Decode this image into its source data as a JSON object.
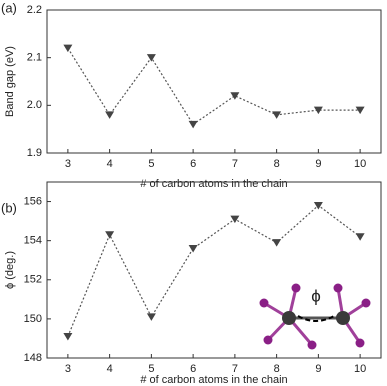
{
  "chart_data": [
    {
      "type": "line",
      "panel_label": "(a)",
      "xlabel": "# of carbon atoms in the chain",
      "ylabel": "Band gap (eV)",
      "x": [
        3,
        4,
        5,
        6,
        7,
        8,
        9,
        10
      ],
      "values": [
        2.12,
        1.98,
        2.1,
        1.96,
        2.02,
        1.98,
        1.99,
        1.99
      ],
      "color": "#555555",
      "xlim": [
        2.5,
        10.5
      ],
      "xticks": [
        3,
        4,
        5,
        6,
        7,
        8,
        9,
        10
      ],
      "ylim": [
        1.9,
        2.2
      ],
      "yticks": [
        1.9,
        {
          "value": 2,
          "label": "2.0"
        },
        2.1,
        2.2
      ]
    },
    {
      "type": "line",
      "panel_label": "(b)",
      "xlabel": "# of carbon atoms in the chain",
      "ylabel": "ϕ (deg.)",
      "inset_label": "ϕ",
      "x": [
        3,
        4,
        5,
        6,
        7,
        8,
        9,
        10
      ],
      "values": [
        149.1,
        154.3,
        150.1,
        153.6,
        155.1,
        153.9,
        155.8,
        154.2
      ],
      "color": "#555555",
      "xlim": [
        2.5,
        10.5
      ],
      "xticks": [
        3,
        4,
        5,
        6,
        7,
        8,
        9,
        10
      ],
      "ylim": [
        148,
        157
      ],
      "yticks": [
        148,
        150,
        152,
        154,
        156
      ]
    }
  ]
}
